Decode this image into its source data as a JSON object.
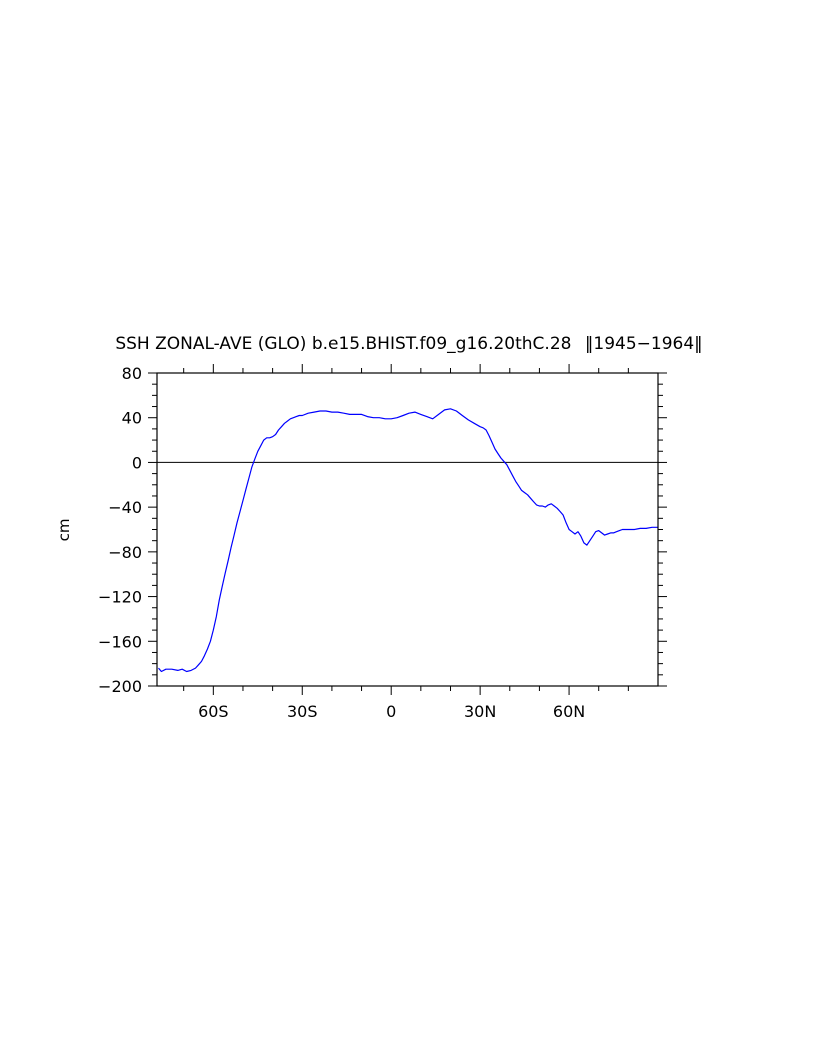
{
  "chart_data": {
    "type": "line",
    "title": "SSH ZONAL-AVE (GLO) b.e15.BHIST.f09_g16.20thC.28 ‖ 1945-1964 ‖",
    "title_parts": {
      "text": "SSH ZONAL-AVE (GLO) b.e15.BHIST.f09_g16.20thC.28",
      "years": "1945−1964"
    },
    "xlabel": "",
    "ylabel": "cm",
    "xlim": [
      -79,
      90
    ],
    "ylim": [
      -200,
      80
    ],
    "x_ticks": [
      {
        "value": -60,
        "label": "60S"
      },
      {
        "value": -30,
        "label": "30S"
      },
      {
        "value": 0,
        "label": "0"
      },
      {
        "value": 30,
        "label": "30N"
      },
      {
        "value": 60,
        "label": "60N"
      }
    ],
    "x_minor_ticks": [
      -70,
      -50,
      -40,
      -20,
      -10,
      10,
      20,
      40,
      50,
      70,
      80
    ],
    "y_ticks": [
      {
        "value": 80,
        "label": "80"
      },
      {
        "value": 40,
        "label": "40"
      },
      {
        "value": 0,
        "label": "0"
      },
      {
        "value": -40,
        "label": "−40"
      },
      {
        "value": -80,
        "label": "−80"
      },
      {
        "value": -120,
        "label": "−120"
      },
      {
        "value": -160,
        "label": "−160"
      },
      {
        "value": -200,
        "label": "−200"
      }
    ],
    "y_minor_step": 10,
    "reference_line": 0,
    "grid": false,
    "series": [
      {
        "color": "#0000ff",
        "x": [
          -78.5,
          -77.5,
          -76,
          -74,
          -72,
          -70.5,
          -69,
          -67.5,
          -66,
          -65,
          -64,
          -63,
          -62,
          -61,
          -60,
          -59,
          -58,
          -57,
          -56,
          -55,
          -54,
          -53,
          -52,
          -51,
          -50,
          -49,
          -48,
          -47,
          -46,
          -45,
          -44,
          -43,
          -42,
          -41,
          -40,
          -39,
          -38,
          -37,
          -36,
          -35,
          -34,
          -33,
          -32,
          -31,
          -30,
          -28,
          -26,
          -24,
          -22,
          -20,
          -18,
          -16,
          -14,
          -12,
          -10,
          -8,
          -6,
          -4,
          -2,
          0,
          2,
          4,
          6,
          8,
          10,
          12,
          14,
          16,
          18,
          20,
          22,
          24,
          26,
          28,
          30,
          31,
          32,
          33,
          34,
          35,
          36,
          37,
          38,
          39,
          40,
          41,
          42,
          43,
          44,
          45,
          46,
          47,
          48,
          49,
          50,
          51,
          52,
          53,
          54,
          55,
          56,
          57,
          58,
          59,
          60,
          61,
          62,
          63,
          64,
          65,
          66,
          67,
          68,
          69,
          70,
          71,
          72,
          73,
          74,
          75,
          76,
          77,
          78,
          80,
          82,
          84,
          86,
          88,
          90
        ],
        "y": [
          -184,
          -187,
          -185,
          -185,
          -186,
          -185,
          -187,
          -186,
          -184,
          -181,
          -178,
          -173,
          -167,
          -160,
          -150,
          -138,
          -123,
          -111,
          -99,
          -88,
          -76,
          -65,
          -54,
          -44,
          -34,
          -24,
          -14,
          -4,
          3,
          10,
          15,
          20,
          22,
          22,
          23,
          25,
          29,
          32,
          35,
          37,
          39,
          40,
          41,
          42,
          42,
          44,
          45,
          46,
          46,
          45,
          45,
          44,
          43,
          43,
          43,
          41,
          40,
          40,
          39,
          39,
          40,
          42,
          44,
          45,
          43,
          41,
          39,
          43,
          47,
          48,
          46,
          42,
          38,
          35,
          32,
          31,
          29,
          24,
          18,
          12,
          8,
          4,
          1,
          -2,
          -7,
          -12,
          -17,
          -21,
          -25,
          -27,
          -29,
          -32,
          -35,
          -38,
          -39,
          -39,
          -40,
          -38,
          -37,
          -39,
          -41,
          -44,
          -47,
          -54,
          -60,
          -62,
          -64,
          -62,
          -66,
          -72,
          -74,
          -70,
          -66,
          -62,
          -61,
          -63,
          -65,
          -64,
          -63,
          -63,
          -62,
          -61,
          -60,
          -60,
          -60,
          -59,
          -59,
          -58,
          -58
        ]
      }
    ]
  }
}
